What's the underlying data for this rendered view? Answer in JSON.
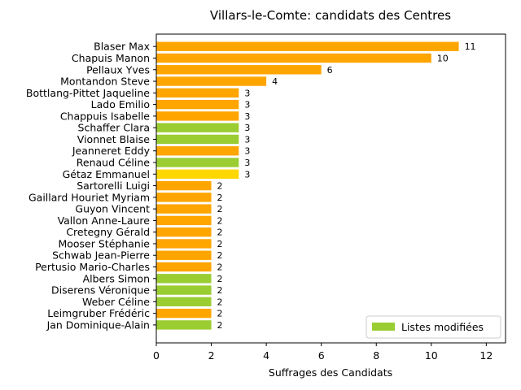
{
  "chart_data": {
    "type": "bar",
    "orientation": "horizontal",
    "title": "Villars-le-Comte: candidats des Centres",
    "xlabel": "Suffrages des Candidats",
    "ylabel": "",
    "xlim": [
      0,
      12.7
    ],
    "xticks": [
      0,
      2,
      4,
      6,
      8,
      10,
      12
    ],
    "grid": false,
    "legend": {
      "position": "bottom-right",
      "entries": [
        {
          "label": "Listes modifiées",
          "color": "#9ACD32"
        }
      ]
    },
    "categories": [
      "Blaser Max",
      "Chapuis Manon",
      "Pellaux Yves",
      "Montandon Steve",
      "Bottlang-Pittet Jaqueline",
      "Lado Emilio",
      "Chappuis Isabelle",
      "Schaffer Clara",
      "Vionnet Blaise",
      "Jeanneret Eddy",
      "Renaud Céline",
      "Gétaz Emmanuel",
      "Sartorelli Luigi",
      "Gaillard Houriet Myriam",
      "Guyon Vincent",
      "Vallon Anne-Laure",
      "Cretegny Gérald",
      "Mooser Stéphanie",
      "Schwab Jean-Pierre",
      "Pertusio Mario-Charles",
      "Albers Simon",
      "Diserens Véronique",
      "Weber Céline",
      "Leimgruber Frédéric",
      "Jan Dominique-Alain"
    ],
    "values": [
      11,
      10,
      6,
      4,
      3,
      3,
      3,
      3,
      3,
      3,
      3,
      3,
      2,
      2,
      2,
      2,
      2,
      2,
      2,
      2,
      2,
      2,
      2,
      2,
      2
    ],
    "colors": [
      "#FFA500",
      "#FFA500",
      "#FFA500",
      "#FFA500",
      "#FFA500",
      "#FFA500",
      "#FFA500",
      "#9ACD32",
      "#9ACD32",
      "#FFA500",
      "#9ACD32",
      "#FFD700",
      "#FFA500",
      "#FFA500",
      "#FFA500",
      "#FFA500",
      "#FFA500",
      "#FFA500",
      "#FFA500",
      "#FFA500",
      "#9ACD32",
      "#9ACD32",
      "#9ACD32",
      "#FFA500",
      "#9ACD32"
    ]
  }
}
